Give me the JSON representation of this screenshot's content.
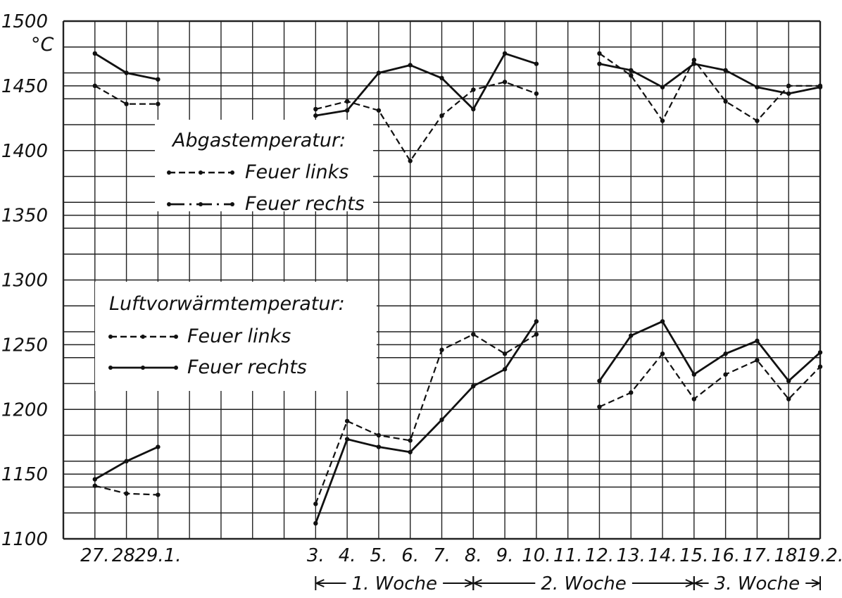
{
  "chart_data": {
    "type": "line",
    "unit_label": "°C",
    "ylim": [
      1100,
      1500
    ],
    "y_ticks": [
      1100,
      1150,
      1200,
      1250,
      1300,
      1350,
      1400,
      1450,
      1500
    ],
    "y_tick_labels": [
      "1100",
      "1150",
      "1200",
      "1250",
      "1300",
      "1350",
      "1400",
      "1450",
      "1500"
    ],
    "x_tick_labels": [
      "27.",
      "28.",
      "29.1.",
      "",
      "",
      "",
      "",
      "3.",
      "4.",
      "5.",
      "6.",
      "7.",
      "8.",
      "9.",
      "10.",
      "11.",
      "12.",
      "13.",
      "14.",
      "15.",
      "16.",
      "17.",
      "18.",
      "19.2."
    ],
    "weeks": [
      {
        "label": "1. Woche",
        "from": 7,
        "to": 12
      },
      {
        "label": "2. Woche",
        "from": 12,
        "to": 19
      },
      {
        "label": "3. Woche",
        "from": 19,
        "to": 23
      }
    ],
    "legend_groups": [
      {
        "title": "Abgastemperatur:",
        "entries": [
          "Feuer links",
          "Feuer rechts"
        ]
      },
      {
        "title": "Luftvorwärmtemperatur:",
        "entries": [
          "Feuer links",
          "Feuer rechts"
        ]
      }
    ],
    "series": [
      {
        "group": 0,
        "name": "Feuer links",
        "style": "dashed",
        "segments": [
          [
            [
              0,
              1450
            ],
            [
              1,
              1436
            ],
            [
              2,
              1436
            ]
          ],
          [
            [
              7,
              1432
            ],
            [
              8,
              1438
            ],
            [
              9,
              1431
            ],
            [
              10,
              1392
            ],
            [
              11,
              1427
            ],
            [
              12,
              1447
            ],
            [
              13,
              1453
            ],
            [
              14,
              1444
            ]
          ],
          [
            [
              16,
              1475
            ],
            [
              17,
              1458
            ],
            [
              18,
              1423
            ],
            [
              19,
              1470
            ],
            [
              20,
              1438
            ],
            [
              21,
              1423
            ],
            [
              22,
              1450
            ],
            [
              23,
              1450
            ]
          ]
        ]
      },
      {
        "group": 0,
        "name": "Feuer rechts",
        "style": "solid",
        "segments": [
          [
            [
              0,
              1475
            ],
            [
              1,
              1460
            ],
            [
              2,
              1455
            ]
          ],
          [
            [
              7,
              1427
            ],
            [
              8,
              1431
            ],
            [
              9,
              1460
            ],
            [
              10,
              1466
            ],
            [
              11,
              1456
            ],
            [
              12,
              1432
            ],
            [
              13,
              1475
            ],
            [
              14,
              1467
            ]
          ],
          [
            [
              16,
              1467
            ],
            [
              17,
              1462
            ],
            [
              18,
              1449
            ],
            [
              19,
              1467
            ],
            [
              20,
              1462
            ],
            [
              21,
              1449
            ],
            [
              22,
              1444
            ],
            [
              23,
              1449
            ]
          ]
        ]
      },
      {
        "group": 1,
        "name": "Feuer links",
        "style": "dashed",
        "segments": [
          [
            [
              0,
              1141
            ],
            [
              1,
              1135
            ],
            [
              2,
              1134
            ]
          ],
          [
            [
              7,
              1127
            ],
            [
              8,
              1191
            ],
            [
              9,
              1180
            ],
            [
              10,
              1176
            ],
            [
              11,
              1246
            ],
            [
              12,
              1258
            ],
            [
              13,
              1243
            ],
            [
              14,
              1258
            ]
          ],
          [
            [
              16,
              1202
            ],
            [
              17,
              1213
            ],
            [
              18,
              1243
            ],
            [
              19,
              1208
            ],
            [
              20,
              1227
            ],
            [
              21,
              1238
            ],
            [
              22,
              1208
            ],
            [
              23,
              1233
            ]
          ]
        ]
      },
      {
        "group": 1,
        "name": "Feuer rechts",
        "style": "solid",
        "segments": [
          [
            [
              0,
              1146
            ],
            [
              1,
              1160
            ],
            [
              2,
              1171
            ]
          ],
          [
            [
              7,
              1112
            ],
            [
              8,
              1177
            ],
            [
              9,
              1171
            ],
            [
              10,
              1167
            ],
            [
              11,
              1192
            ],
            [
              12,
              1218
            ],
            [
              13,
              1231
            ],
            [
              14,
              1268
            ]
          ],
          [
            [
              16,
              1222
            ],
            [
              17,
              1257
            ],
            [
              18,
              1268
            ],
            [
              19,
              1227
            ],
            [
              20,
              1243
            ],
            [
              21,
              1253
            ],
            [
              22,
              1222
            ],
            [
              23,
              1244
            ]
          ]
        ]
      }
    ]
  }
}
